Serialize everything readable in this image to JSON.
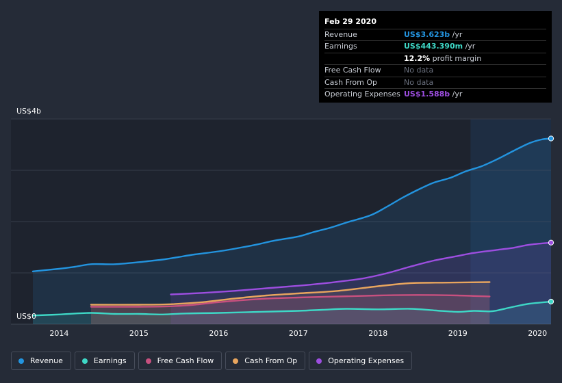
{
  "chart_data": {
    "type": "line",
    "title": "",
    "y_unit_top": "US$4b",
    "y_unit_bottom": "US$0",
    "ylim": [
      0,
      4
    ],
    "xlim": [
      2013.67,
      2020.17
    ],
    "x_ticks": [
      {
        "value": 2014,
        "label": "2014"
      },
      {
        "value": 2015,
        "label": "2015"
      },
      {
        "value": 2016,
        "label": "2016"
      },
      {
        "value": 2017,
        "label": "2017"
      },
      {
        "value": 2018,
        "label": "2018"
      },
      {
        "value": 2019,
        "label": "2019"
      },
      {
        "value": 2020,
        "label": "2020"
      }
    ],
    "y_grid": [
      0,
      1,
      2,
      3,
      4
    ],
    "highlight_start": 2019.16,
    "series": [
      {
        "name": "Revenue",
        "color": "#2394df",
        "area": true,
        "end_marker": true,
        "points": [
          [
            2013.67,
            1.03
          ],
          [
            2014.0,
            1.08
          ],
          [
            2014.2,
            1.12
          ],
          [
            2014.4,
            1.17
          ],
          [
            2014.7,
            1.17
          ],
          [
            2015.0,
            1.21
          ],
          [
            2015.3,
            1.26
          ],
          [
            2015.5,
            1.31
          ],
          [
            2015.7,
            1.36
          ],
          [
            2016.0,
            1.42
          ],
          [
            2016.3,
            1.5
          ],
          [
            2016.5,
            1.56
          ],
          [
            2016.7,
            1.63
          ],
          [
            2017.0,
            1.71
          ],
          [
            2017.2,
            1.8
          ],
          [
            2017.4,
            1.88
          ],
          [
            2017.6,
            1.98
          ],
          [
            2017.9,
            2.12
          ],
          [
            2018.1,
            2.28
          ],
          [
            2018.3,
            2.46
          ],
          [
            2018.5,
            2.62
          ],
          [
            2018.7,
            2.76
          ],
          [
            2018.9,
            2.85
          ],
          [
            2019.1,
            2.98
          ],
          [
            2019.3,
            3.08
          ],
          [
            2019.5,
            3.22
          ],
          [
            2019.7,
            3.38
          ],
          [
            2019.9,
            3.53
          ],
          [
            2020.05,
            3.6
          ],
          [
            2020.17,
            3.62
          ]
        ]
      },
      {
        "name": "Earnings",
        "color": "#3ed7c6",
        "area": true,
        "end_marker": true,
        "points": [
          [
            2013.67,
            0.17
          ],
          [
            2014.0,
            0.19
          ],
          [
            2014.4,
            0.22
          ],
          [
            2014.7,
            0.2
          ],
          [
            2015.0,
            0.2
          ],
          [
            2015.3,
            0.19
          ],
          [
            2015.6,
            0.21
          ],
          [
            2016.0,
            0.22
          ],
          [
            2016.5,
            0.24
          ],
          [
            2017.0,
            0.26
          ],
          [
            2017.3,
            0.28
          ],
          [
            2017.6,
            0.3
          ],
          [
            2018.0,
            0.29
          ],
          [
            2018.4,
            0.3
          ],
          [
            2018.7,
            0.27
          ],
          [
            2019.0,
            0.24
          ],
          [
            2019.2,
            0.26
          ],
          [
            2019.4,
            0.25
          ],
          [
            2019.5,
            0.27
          ],
          [
            2019.7,
            0.34
          ],
          [
            2019.9,
            0.4
          ],
          [
            2020.17,
            0.44
          ]
        ]
      },
      {
        "name": "Free Cash Flow",
        "color": "#c8507f",
        "area": true,
        "end_marker": false,
        "points": [
          [
            2014.4,
            0.34
          ],
          [
            2015.0,
            0.34
          ],
          [
            2015.4,
            0.35
          ],
          [
            2015.7,
            0.38
          ],
          [
            2016.0,
            0.43
          ],
          [
            2016.5,
            0.49
          ],
          [
            2017.0,
            0.52
          ],
          [
            2017.5,
            0.54
          ],
          [
            2018.0,
            0.56
          ],
          [
            2018.5,
            0.57
          ],
          [
            2019.0,
            0.56
          ],
          [
            2019.4,
            0.54
          ]
        ]
      },
      {
        "name": "Cash From Op",
        "color": "#e8a55e",
        "area": true,
        "end_marker": false,
        "points": [
          [
            2014.4,
            0.38
          ],
          [
            2015.0,
            0.38
          ],
          [
            2015.4,
            0.39
          ],
          [
            2015.8,
            0.43
          ],
          [
            2016.2,
            0.5
          ],
          [
            2016.6,
            0.56
          ],
          [
            2017.0,
            0.6
          ],
          [
            2017.5,
            0.65
          ],
          [
            2018.0,
            0.74
          ],
          [
            2018.4,
            0.8
          ],
          [
            2018.8,
            0.81
          ],
          [
            2019.4,
            0.82
          ]
        ]
      },
      {
        "name": "Operating Expenses",
        "color": "#9d4ee0",
        "area": true,
        "end_marker": true,
        "points": [
          [
            2015.4,
            0.58
          ],
          [
            2015.8,
            0.61
          ],
          [
            2016.2,
            0.65
          ],
          [
            2016.6,
            0.7
          ],
          [
            2017.0,
            0.75
          ],
          [
            2017.4,
            0.81
          ],
          [
            2017.8,
            0.89
          ],
          [
            2018.1,
            0.99
          ],
          [
            2018.4,
            1.12
          ],
          [
            2018.7,
            1.24
          ],
          [
            2019.0,
            1.33
          ],
          [
            2019.2,
            1.39
          ],
          [
            2019.5,
            1.45
          ],
          [
            2019.7,
            1.49
          ],
          [
            2019.9,
            1.55
          ],
          [
            2020.17,
            1.59
          ]
        ]
      }
    ]
  },
  "tooltip": {
    "date": "Feb 29 2020",
    "rows": [
      {
        "label": "Revenue",
        "value": "US$3.623b",
        "unit": " /yr",
        "color": "#2394df",
        "nodata": false
      },
      {
        "label": "Earnings",
        "value": "US$443.390m",
        "unit": " /yr",
        "color": "#3ed7c6",
        "nodata": false
      },
      {
        "label": "",
        "value": "12.2%",
        "unit": " profit margin",
        "color": "#ffffff",
        "nodata": false
      },
      {
        "label": "Free Cash Flow",
        "value": "No data",
        "unit": "",
        "color": "#6c7280",
        "nodata": true
      },
      {
        "label": "Cash From Op",
        "value": "No data",
        "unit": "",
        "color": "#6c7280",
        "nodata": true
      },
      {
        "label": "Operating Expenses",
        "value": "US$1.588b",
        "unit": " /yr",
        "color": "#9d4ee0",
        "nodata": false
      }
    ]
  },
  "legend": [
    {
      "label": "Revenue",
      "color": "#2394df"
    },
    {
      "label": "Earnings",
      "color": "#3ed7c6"
    },
    {
      "label": "Free Cash Flow",
      "color": "#c8507f"
    },
    {
      "label": "Cash From Op",
      "color": "#e8a55e"
    },
    {
      "label": "Operating Expenses",
      "color": "#9d4ee0"
    }
  ]
}
